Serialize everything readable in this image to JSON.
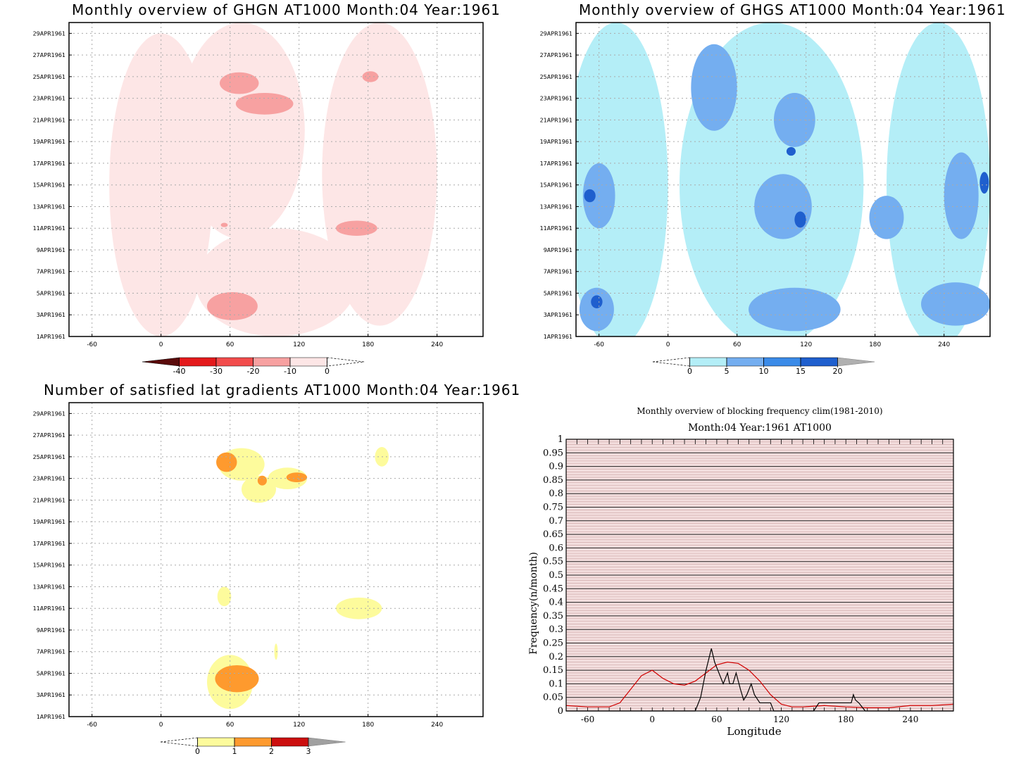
{
  "panels": {
    "ghgn": {
      "title": "Monthly overview of GHGN AT1000 Month:04 Year:1961",
      "colorbar": {
        "labels": [
          "-40",
          "-30",
          "-20",
          "-10",
          "0"
        ],
        "colors": [
          "#5a0a0a",
          "#e41a1c",
          "#f24c4c",
          "#f7a1a1",
          "#fde6e6"
        ]
      }
    },
    "ghgs": {
      "title": "Monthly overview of GHGS AT1000 Month:04 Year:1961",
      "colorbar": {
        "labels": [
          "0",
          "5",
          "10",
          "15",
          "20"
        ],
        "colors": [
          "#b4eef7",
          "#74aef0",
          "#3b8be8",
          "#1f5fce",
          "#b0b0b0"
        ]
      }
    },
    "lat": {
      "title": "Number of satisfied lat gradients AT1000 Month:04 Year:1961",
      "colorbar": {
        "labels": [
          "0",
          "1",
          "2",
          "3"
        ],
        "colors": [
          "#fdfb9c",
          "#fe9a2e",
          "#cc0e0e",
          "#a0a0a0"
        ]
      }
    },
    "freq": {
      "title": "Monthly overview of blocking frequency clim(1981-2010)",
      "subtitle": "Month:04 Year:1961  AT1000"
    }
  },
  "chart_data": [
    {
      "type": "heatmap",
      "title": "Monthly overview of GHGN AT1000 Month:04 Year:1961",
      "x_ticks": [
        "-60",
        "0",
        "60",
        "120",
        "180",
        "240"
      ],
      "y_ticks": [
        "1APR1961",
        "3APR1961",
        "5APR1961",
        "7APR1961",
        "9APR1961",
        "11APR1961",
        "13APR1961",
        "15APR1961",
        "17APR1961",
        "19APR1961",
        "21APR1961",
        "23APR1961",
        "25APR1961",
        "27APR1961",
        "29APR1961"
      ],
      "xlim": [
        -80,
        280
      ],
      "grid": true,
      "features": [
        {
          "level": -10,
          "lon": 0,
          "day": 15,
          "w": 90,
          "h": 28
        },
        {
          "level": -10,
          "lon": 70,
          "day": 20,
          "w": 110,
          "h": 20
        },
        {
          "level": -10,
          "lon": 190,
          "day": 16,
          "w": 100,
          "h": 28
        },
        {
          "level": -10,
          "lon": 100,
          "day": 6,
          "w": 140,
          "h": 10
        },
        {
          "level": -20,
          "lon": 68,
          "day": 24.4,
          "w": 34,
          "h": 2
        },
        {
          "level": -20,
          "lon": 90,
          "day": 22.5,
          "w": 50,
          "h": 2
        },
        {
          "level": -20,
          "lon": 182,
          "day": 25,
          "w": 14,
          "h": 1
        },
        {
          "level": -20,
          "lon": 170,
          "day": 11,
          "w": 36,
          "h": 1.4
        },
        {
          "level": -20,
          "lon": 62,
          "day": 3.8,
          "w": 44,
          "h": 2.6
        },
        {
          "level": -20,
          "lon": 55,
          "day": 11.3,
          "w": 6,
          "h": 0.4
        }
      ]
    },
    {
      "type": "heatmap",
      "title": "Monthly overview of GHGS AT1000 Month:04 Year:1961",
      "x_ticks": [
        "-60",
        "0",
        "60",
        "120",
        "180",
        "240"
      ],
      "y_ticks": [
        "1APR1961",
        "3APR1961",
        "5APR1961",
        "7APR1961",
        "9APR1961",
        "11APR1961",
        "13APR1961",
        "15APR1961",
        "17APR1961",
        "19APR1961",
        "21APR1961",
        "23APR1961",
        "25APR1961",
        "27APR1961",
        "29APR1961"
      ],
      "xlim": [
        -80,
        280
      ],
      "grid": true,
      "features": [
        {
          "level": 5,
          "lon": -45,
          "day": 15,
          "w": 90,
          "h": 30
        },
        {
          "level": 5,
          "lon": 90,
          "day": 15,
          "w": 160,
          "h": 30
        },
        {
          "level": 5,
          "lon": 235,
          "day": 15,
          "w": 90,
          "h": 30
        },
        {
          "level": 10,
          "lon": -60,
          "day": 14,
          "w": 28,
          "h": 6
        },
        {
          "level": 10,
          "lon": -62,
          "day": 3.5,
          "w": 30,
          "h": 4
        },
        {
          "level": 10,
          "lon": 40,
          "day": 24,
          "w": 40,
          "h": 8
        },
        {
          "level": 10,
          "lon": 100,
          "day": 13,
          "w": 50,
          "h": 6
        },
        {
          "level": 10,
          "lon": 110,
          "day": 21,
          "w": 36,
          "h": 5
        },
        {
          "level": 10,
          "lon": 110,
          "day": 3.5,
          "w": 80,
          "h": 4
        },
        {
          "level": 10,
          "lon": 190,
          "day": 12,
          "w": 30,
          "h": 4
        },
        {
          "level": 10,
          "lon": 255,
          "day": 14,
          "w": 30,
          "h": 8
        },
        {
          "level": 10,
          "lon": 250,
          "day": 4,
          "w": 60,
          "h": 4
        },
        {
          "level": 15,
          "lon": -62,
          "day": 4.2,
          "w": 10,
          "h": 1.2
        },
        {
          "level": 15,
          "lon": -68,
          "day": 14,
          "w": 10,
          "h": 1.2
        },
        {
          "level": 15,
          "lon": 115,
          "day": 11.8,
          "w": 10,
          "h": 1.5
        },
        {
          "level": 15,
          "lon": 107,
          "day": 18.1,
          "w": 8,
          "h": 0.8
        },
        {
          "level": 15,
          "lon": 275,
          "day": 15.2,
          "w": 8,
          "h": 2
        }
      ]
    },
    {
      "type": "heatmap",
      "title": "Number of satisfied lat gradients AT1000 Month:04 Year:1961",
      "x_ticks": [
        "-60",
        "0",
        "60",
        "120",
        "180",
        "240"
      ],
      "y_ticks": [
        "1APR1961",
        "3APR1961",
        "5APR1961",
        "7APR1961",
        "9APR1961",
        "11APR1961",
        "13APR1961",
        "15APR1961",
        "17APR1961",
        "19APR1961",
        "21APR1961",
        "23APR1961",
        "25APR1961",
        "27APR1961",
        "29APR1961"
      ],
      "xlim": [
        -80,
        280
      ],
      "grid": true,
      "features": [
        {
          "level": 1,
          "lon": 70,
          "day": 24.3,
          "w": 40,
          "h": 3
        },
        {
          "level": 1,
          "lon": 85,
          "day": 22,
          "w": 30,
          "h": 2.5
        },
        {
          "level": 1,
          "lon": 110,
          "day": 23,
          "w": 34,
          "h": 2
        },
        {
          "level": 1,
          "lon": 192,
          "day": 25,
          "w": 12,
          "h": 1.8
        },
        {
          "level": 1,
          "lon": 55,
          "day": 12.1,
          "w": 12,
          "h": 1.8
        },
        {
          "level": 1,
          "lon": 172,
          "day": 11,
          "w": 40,
          "h": 2
        },
        {
          "level": 1,
          "lon": 100,
          "day": 7,
          "w": 3,
          "h": 1.5
        },
        {
          "level": 1,
          "lon": 60,
          "day": 4.2,
          "w": 40,
          "h": 5
        },
        {
          "level": 2,
          "lon": 57,
          "day": 24.5,
          "w": 18,
          "h": 1.8
        },
        {
          "level": 2,
          "lon": 88,
          "day": 22.8,
          "w": 8,
          "h": 0.9
        },
        {
          "level": 2,
          "lon": 118,
          "day": 23.1,
          "w": 18,
          "h": 0.9
        },
        {
          "level": 2,
          "lon": 66,
          "day": 4.5,
          "w": 38,
          "h": 2.5
        }
      ]
    },
    {
      "type": "line",
      "title": "Monthly overview of blocking frequency clim(1981-2010)",
      "subtitle": "Month:04 Year:1961  AT1000",
      "xlabel": "Longitude",
      "ylabel": "Frequency(n/month)",
      "xlim": [
        -80,
        280
      ],
      "ylim": [
        0,
        1
      ],
      "x_ticks": [
        "-60",
        "0",
        "60",
        "120",
        "180",
        "240"
      ],
      "y_ticks": [
        "0",
        "0.05",
        "0.1",
        "0.15",
        "0.2",
        "0.25",
        "0.3",
        "0.35",
        "0.4",
        "0.45",
        "0.5",
        "0.55",
        "0.6",
        "0.65",
        "0.7",
        "0.75",
        "0.8",
        "0.85",
        "0.9",
        "0.95",
        "1"
      ],
      "series": [
        {
          "color": "#d00000",
          "x": [
            -80,
            -60,
            -40,
            -30,
            -20,
            -10,
            0,
            10,
            20,
            30,
            40,
            50,
            60,
            70,
            80,
            90,
            100,
            110,
            120,
            130,
            140,
            160,
            180,
            200,
            220,
            240,
            260,
            280
          ],
          "y": [
            0.02,
            0.015,
            0.015,
            0.03,
            0.08,
            0.13,
            0.15,
            0.12,
            0.1,
            0.095,
            0.11,
            0.14,
            0.17,
            0.18,
            0.175,
            0.15,
            0.11,
            0.06,
            0.025,
            0.015,
            0.015,
            0.02,
            0.015,
            0.012,
            0.012,
            0.02,
            0.02,
            0.025
          ]
        },
        {
          "color": "#000000",
          "x": [
            -80,
            35,
            40,
            42,
            45,
            50,
            55,
            58,
            62,
            66,
            70,
            72,
            75,
            78,
            82,
            85,
            88,
            92,
            95,
            100,
            105,
            110,
            113,
            150,
            155,
            185,
            187,
            189,
            192,
            198,
            280
          ],
          "y": [
            0,
            0,
            0,
            0.02,
            0.05,
            0.15,
            0.23,
            0.18,
            0.14,
            0.1,
            0.14,
            0.1,
            0.1,
            0.14,
            0.08,
            0.04,
            0.06,
            0.1,
            0.06,
            0.03,
            0.03,
            0.03,
            0.0,
            0.0,
            0.03,
            0.03,
            0.06,
            0.04,
            0.03,
            0.0,
            0.0
          ]
        }
      ]
    }
  ]
}
